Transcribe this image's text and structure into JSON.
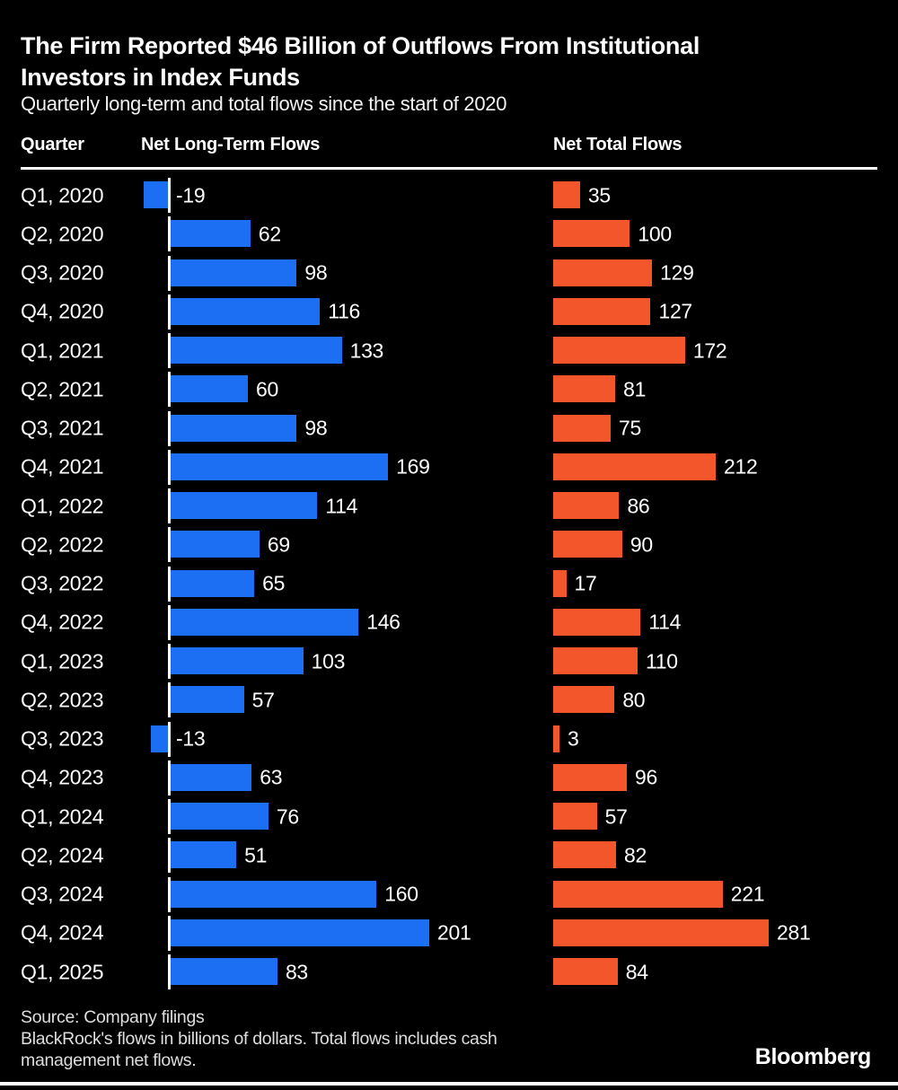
{
  "header": {
    "title_lines": [
      "The Firm Reported $46 Billion of Outflows From Institutional",
      "Investors in Index Funds"
    ],
    "subtitle": "Quarterly long-term and total flows since the start of 2020"
  },
  "table_headers": {
    "quarter": "Quarter",
    "long_term": "Net Long-Term Flows",
    "total": "Net Total Flows"
  },
  "chart_data": {
    "type": "bar",
    "orientation": "horizontal",
    "title": "The Firm Reported $46 Billion of Outflows From Institutional Investors in Index Funds",
    "subtitle": "Quarterly long-term and total flows since the start of 2020",
    "unit": "billions of dollars",
    "categories": [
      "Q1, 2020",
      "Q2, 2020",
      "Q3, 2020",
      "Q4, 2020",
      "Q1, 2021",
      "Q2, 2021",
      "Q3, 2021",
      "Q4, 2021",
      "Q1, 2022",
      "Q2, 2022",
      "Q3, 2022",
      "Q4, 2022",
      "Q1, 2023",
      "Q2, 2023",
      "Q3, 2023",
      "Q4, 2023",
      "Q1, 2024",
      "Q2, 2024",
      "Q3, 2024",
      "Q4, 2024",
      "Q1, 2025"
    ],
    "series": [
      {
        "name": "Net Long-Term Flows",
        "color": "#1c6ef2",
        "values": [
          -19,
          62,
          98,
          116,
          133,
          60,
          98,
          169,
          114,
          69,
          65,
          146,
          103,
          57,
          -13,
          63,
          76,
          51,
          160,
          201,
          83
        ]
      },
      {
        "name": "Net Total Flows",
        "color": "#f4562b",
        "values": [
          35,
          100,
          129,
          127,
          172,
          81,
          75,
          212,
          86,
          90,
          17,
          114,
          110,
          80,
          3,
          96,
          57,
          82,
          221,
          281,
          84
        ]
      }
    ],
    "grid": false,
    "legend_position": "column-headers",
    "data_labels": true
  },
  "footer": {
    "source": "Source: Company filings",
    "note_lines": [
      "BlackRock's flows in billions of dollars. Total flows includes cash",
      "management net flows."
    ],
    "brand": "Bloomberg"
  },
  "colors": {
    "background": "#000000",
    "long_term_bar": "#1c6ef2",
    "total_bar": "#f4562b",
    "rule": "#ffffff",
    "footer_text": "#dedede"
  }
}
